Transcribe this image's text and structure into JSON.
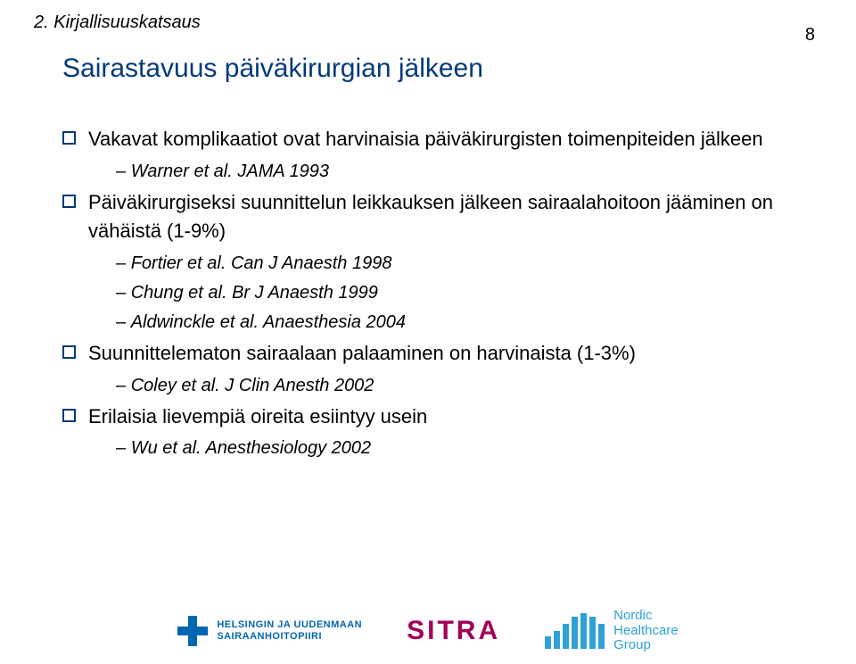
{
  "section_number": "2. Kirjallisuuskatsaus",
  "page_number": "8",
  "title": "Sairastavuus päiväkirurgian jälkeen",
  "bullets": [
    {
      "text": "Vakavat komplikaatiot ovat harvinaisia päiväkirurgisten toimenpiteiden jälkeen",
      "subs": [
        "Warner et al. JAMA 1993"
      ]
    },
    {
      "text": "Päiväkirurgiseksi suunnittelun leikkauksen jälkeen sairaalahoitoon jääminen on vähäistä (1-9%)",
      "subs": [
        "Fortier et al. Can J Anaesth 1998",
        "Chung et al. Br J Anaesth 1999",
        "Aldwinckle et al. Anaesthesia 2004"
      ]
    },
    {
      "text": "Suunnittelematon sairaalaan palaaminen on harvinaista (1-3%)",
      "subs": [
        "Coley et al. J Clin Anesth 2002"
      ]
    },
    {
      "text": "Erilaisia lievempiä oireita esiintyy usein",
      "subs": [
        "Wu et al. Anesthesiology 2002"
      ]
    }
  ],
  "footer": {
    "hus_line1": "HELSINGIN JA UUDENMAAN",
    "hus_line2": "SAIRAANHOITOPIIRI",
    "sitra": "SITRA",
    "nhg_line1": "Nordic",
    "nhg_line2": "Healthcare",
    "nhg_line3": "Group",
    "nhg_bar_heights": [
      14,
      20,
      28,
      36,
      40,
      36,
      28
    ],
    "nhg_bar_color": "#2fa1d8",
    "hus_color": "#0067b1",
    "sitra_color": "#a2005a"
  }
}
